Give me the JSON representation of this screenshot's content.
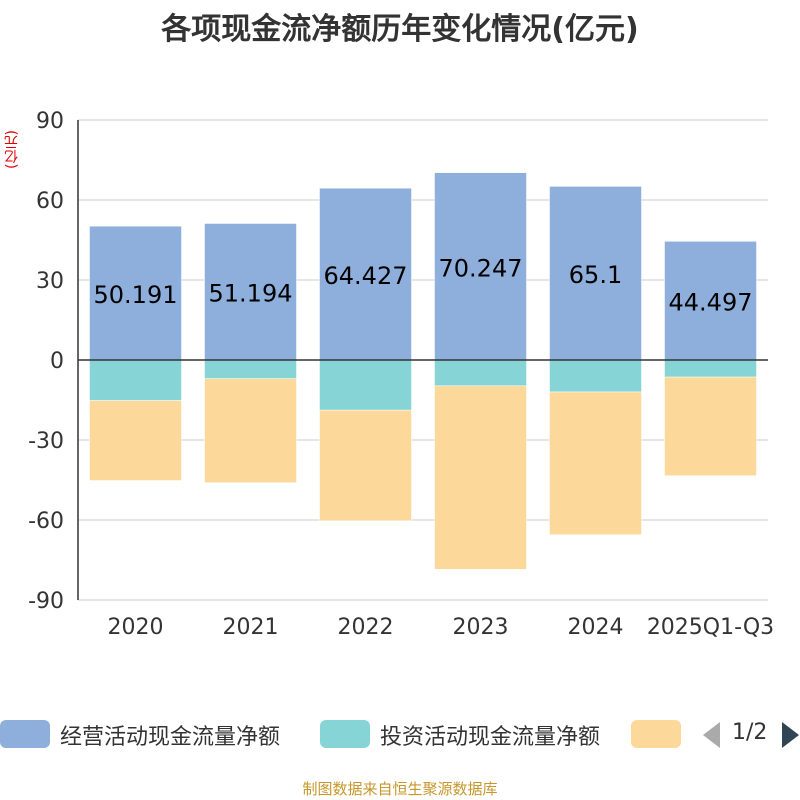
{
  "chart_data": {
    "type": "bar",
    "stacked": true,
    "title": "各项现金流净额历年变化情况(亿元)",
    "ylabel": "(亿元)",
    "ylim": [
      -90,
      90
    ],
    "yticks": [
      90,
      60,
      30,
      0,
      -30,
      -60,
      -90
    ],
    "categories": [
      "2020",
      "2021",
      "2022",
      "2023",
      "2024",
      "2025Q1-Q3"
    ],
    "series": [
      {
        "name": "经营活动现金流量净额",
        "color": "#8eaedb",
        "values": [
          50.191,
          51.194,
          64.427,
          70.247,
          65.1,
          44.497
        ],
        "labels": [
          "50.191",
          "51.194",
          "64.427",
          "70.247",
          "65.1",
          "44.497"
        ]
      },
      {
        "name": "投资活动现金流量净额",
        "color": "#86d4d6",
        "values": [
          -15.2,
          -7.0,
          -18.8,
          -9.7,
          -12.0,
          -6.4
        ]
      },
      {
        "name": "",
        "color": "#fdd89b",
        "values": [
          -30.0,
          -39.0,
          -41.5,
          -68.8,
          -53.5,
          -37.0
        ]
      }
    ],
    "legend_position": "bottom",
    "legend_page": "1/2",
    "source": "制图数据来自恒生聚源数据库"
  }
}
